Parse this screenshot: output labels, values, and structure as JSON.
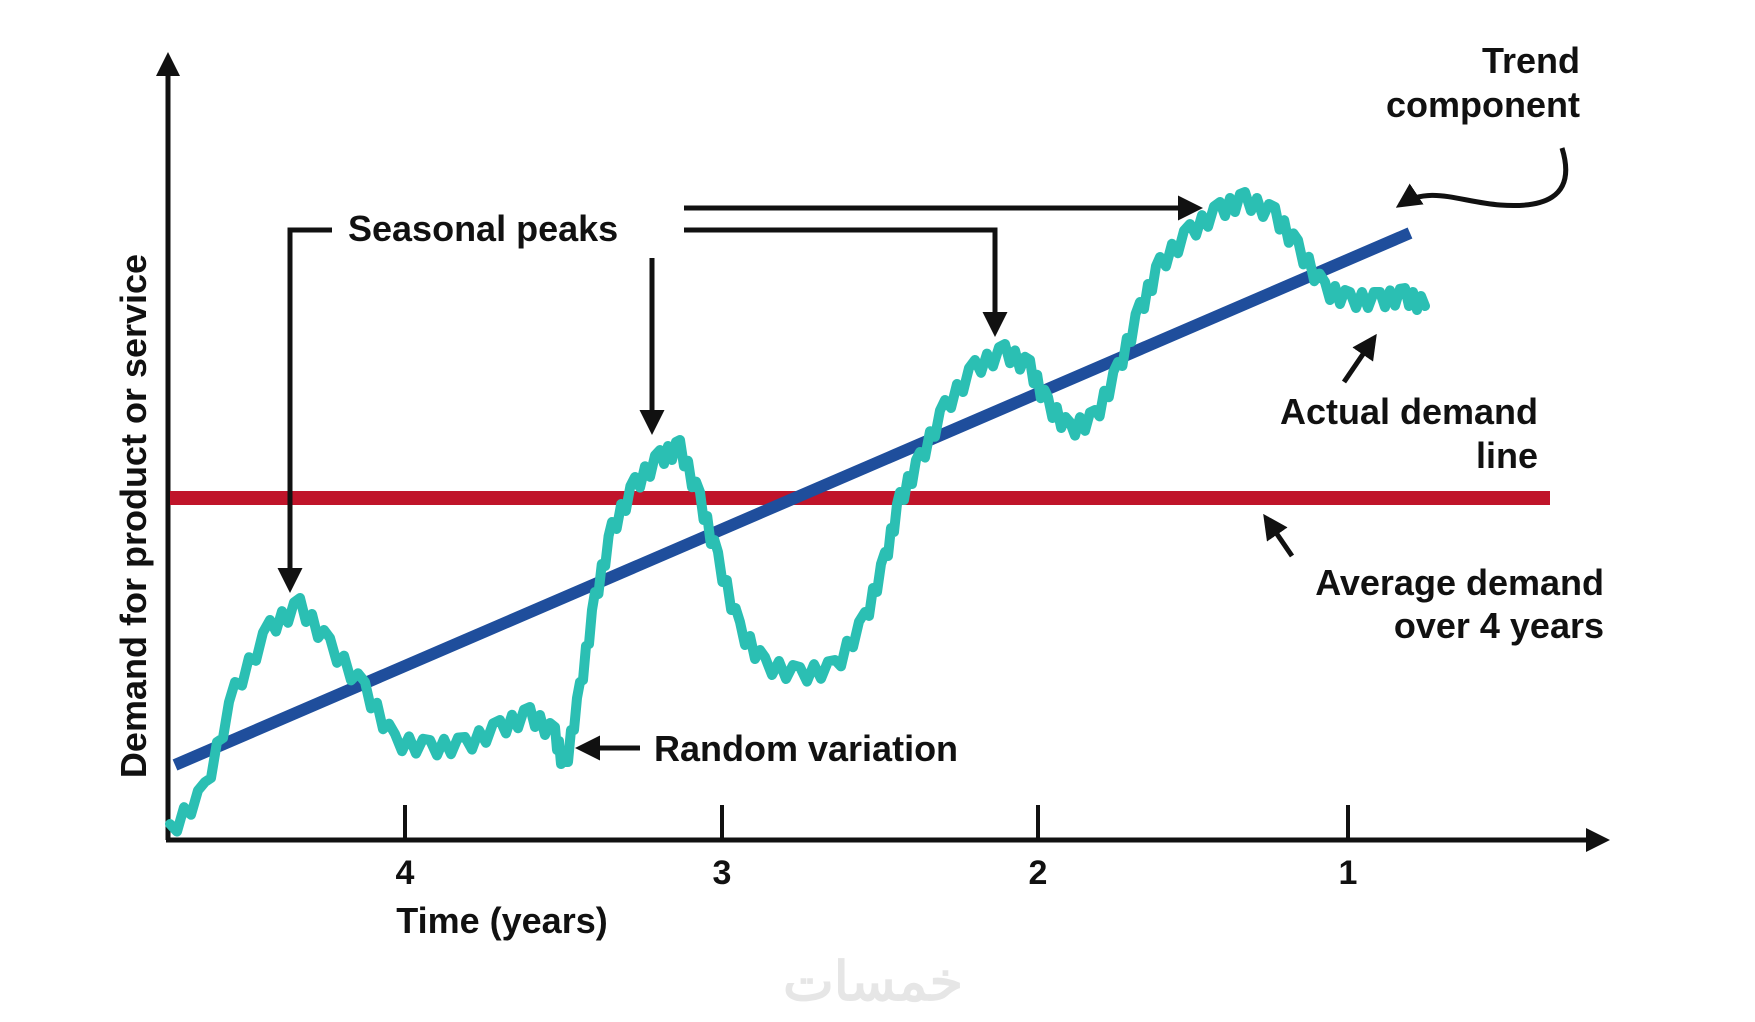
{
  "diagram": {
    "y_axis_label": "Demand for product or service",
    "x_axis_label": "Time (years)",
    "ticks": [
      "4",
      "3",
      "2",
      "1"
    ],
    "annotations": {
      "trend_line1": "Trend",
      "trend_line2": "component",
      "seasonal": "Seasonal peaks",
      "actual_line1": "Actual demand",
      "actual_line2": "line",
      "average_line1": "Average demand",
      "average_line2": "over 4 years",
      "random": "Random variation"
    },
    "watermark": "خمسات"
  },
  "colors": {
    "actual_demand": "#2bbfb3",
    "trend": "#1f4e9c",
    "average": "#c0142a",
    "axes": "#111111"
  }
}
